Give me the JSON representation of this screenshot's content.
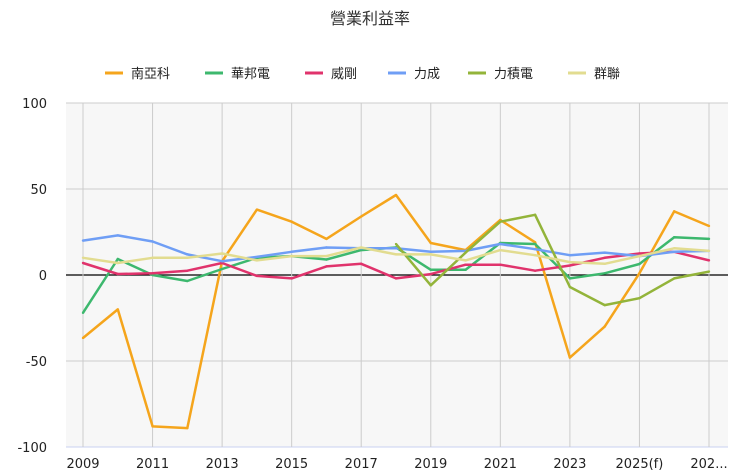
{
  "chart_data": {
    "type": "line",
    "title": "營業利益率",
    "legend_position": "top",
    "grid": true,
    "ylim": [
      -100,
      100
    ],
    "y_ticks": [
      100,
      50,
      0,
      -50,
      -100
    ],
    "x": [
      2009,
      2010,
      2011,
      2012,
      2013,
      2014,
      2015,
      2016,
      2017,
      2018,
      2019,
      2020,
      2021,
      2022,
      2023,
      2024,
      2025,
      2026,
      2027
    ],
    "x_tick_labels": [
      "2009",
      "2011",
      "2013",
      "2015",
      "2017",
      "2019",
      "2021",
      "2023",
      "2025(f)",
      "202..."
    ],
    "series": [
      {
        "name": "南亞科",
        "color": "#f5a51c",
        "values": [
          -36.6,
          -20,
          -88,
          -89,
          8,
          38,
          31,
          21,
          34,
          46.5,
          18.6,
          14.5,
          32,
          19,
          -48,
          -30,
          1,
          37,
          28.5
        ]
      },
      {
        "name": "華邦電",
        "color": "#3db86e",
        "values": [
          -22,
          9.3,
          0,
          -3.5,
          3.5,
          10,
          11,
          9,
          14.5,
          16,
          3,
          3,
          18.6,
          18,
          -2,
          1,
          6.4,
          22,
          21
        ]
      },
      {
        "name": "威剛",
        "color": "#e0336c",
        "values": [
          7,
          0.6,
          1,
          2.5,
          7,
          -0.5,
          -2,
          5,
          6.5,
          -2,
          0.5,
          6,
          6,
          2.5,
          5.5,
          10,
          12.5,
          13.5,
          8.5
        ]
      },
      {
        "name": "力成",
        "color": "#6f9ef5",
        "values": [
          20,
          23,
          19.5,
          12,
          8,
          10.5,
          13.5,
          16,
          15.5,
          15.5,
          13.5,
          14,
          18,
          15,
          11.5,
          13,
          11,
          13.5,
          14
        ]
      },
      {
        "name": "力積電",
        "color": "#93b43a",
        "values": [
          null,
          null,
          null,
          null,
          null,
          null,
          null,
          null,
          null,
          18,
          -6,
          13,
          31,
          35,
          -7,
          -17.5,
          -13.5,
          -2,
          2
        ]
      },
      {
        "name": "群聯",
        "color": "#e2dc90",
        "values": [
          10,
          7,
          10,
          10,
          12.5,
          8.5,
          11,
          11,
          16,
          12,
          12,
          8.5,
          14.5,
          11.5,
          7.5,
          6.5,
          11,
          15.5,
          14
        ]
      }
    ]
  }
}
